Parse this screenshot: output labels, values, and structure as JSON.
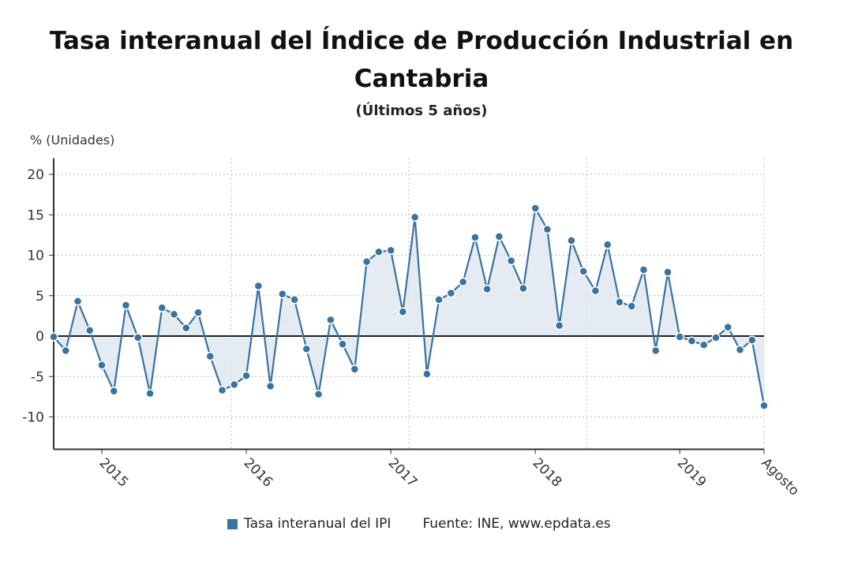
{
  "chart_data": {
    "type": "area",
    "title": "Tasa interanual del Índice de Producción Industrial en Cantabria",
    "subtitle": "(Últimos 5 años)",
    "ylabel": "% (Unidades)",
    "xlabel": "",
    "ylim": [
      -14,
      22
    ],
    "yticks": [
      20,
      15,
      10,
      5,
      0,
      -5,
      -10
    ],
    "xtick_labels": [
      {
        "label": "2015",
        "index": 4
      },
      {
        "label": "2016",
        "index": 16
      },
      {
        "label": "2017",
        "index": 28
      },
      {
        "label": "2018",
        "index": 40
      },
      {
        "label": "2019",
        "index": 52
      },
      {
        "label": "Agosto",
        "index": 59
      }
    ],
    "grid": true,
    "legend_position": "bottom",
    "series": [
      {
        "name": "Tasa interanual del IPI",
        "color": "#3a72a0",
        "fill": "#dde6f0",
        "values": [
          -0.1,
          -1.8,
          4.3,
          0.7,
          -3.6,
          -6.8,
          3.8,
          -0.2,
          -7.1,
          3.5,
          2.7,
          1.0,
          2.9,
          -2.5,
          -6.7,
          -6.0,
          -4.9,
          6.2,
          -6.2,
          5.2,
          4.5,
          -1.6,
          -7.2,
          2.0,
          -1.0,
          -4.1,
          9.2,
          10.4,
          10.6,
          3.0,
          14.7,
          -4.7,
          4.5,
          5.3,
          6.7,
          12.2,
          5.8,
          12.3,
          9.3,
          5.9,
          15.8,
          13.2,
          1.3,
          11.8,
          8.0,
          5.6,
          11.3,
          4.2,
          3.7,
          8.2,
          -1.8,
          7.9,
          -0.1,
          -0.6,
          -1.1,
          -0.2,
          1.1,
          -1.7,
          -0.5,
          -8.6
        ]
      }
    ],
    "source": "Fuente: INE, www.epdata.es"
  }
}
